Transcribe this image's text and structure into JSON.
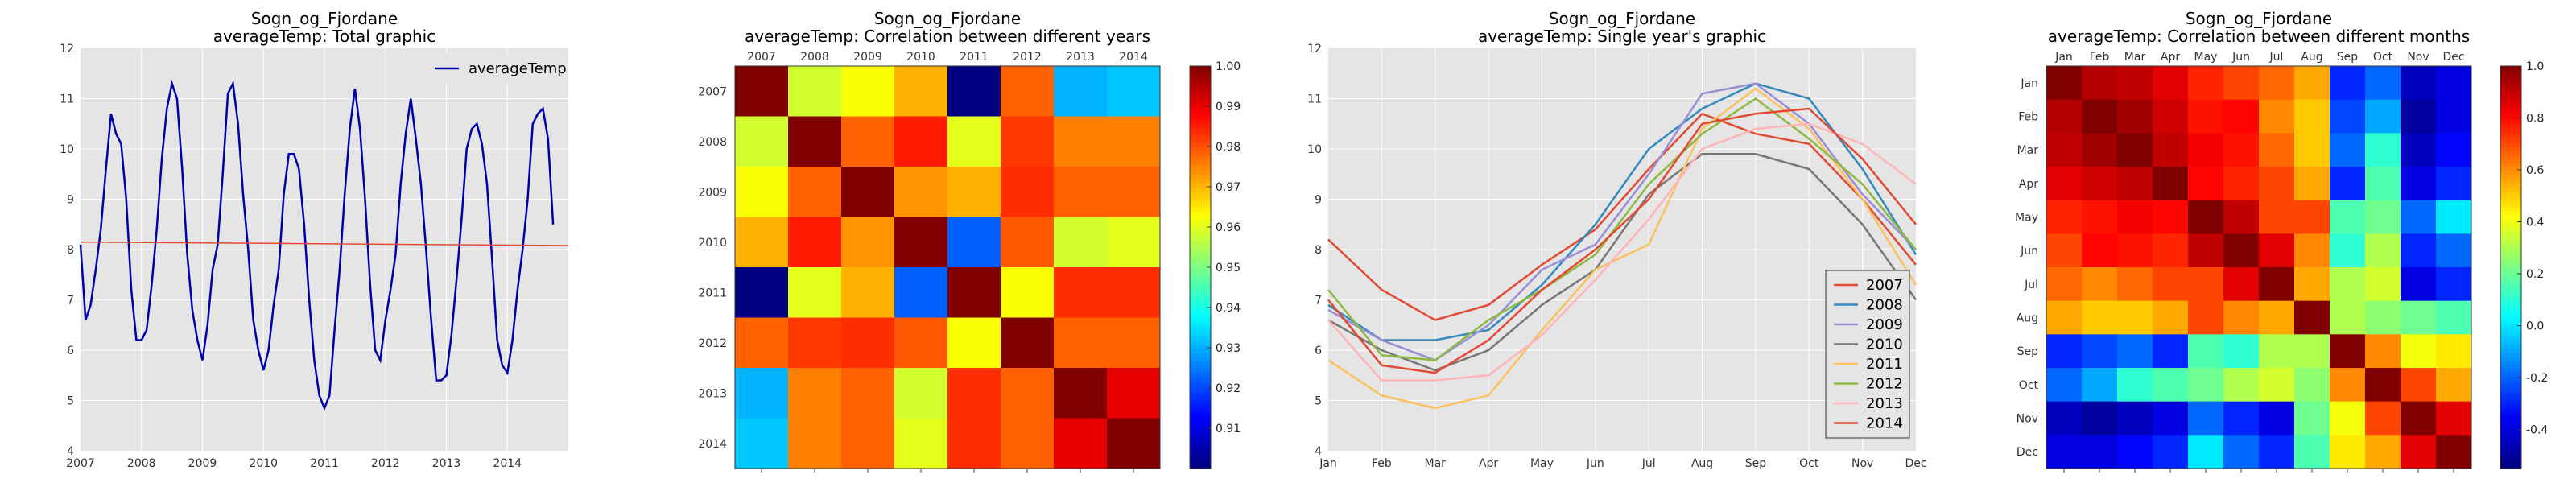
{
  "chart_data": [
    {
      "id": "total",
      "type": "line",
      "title": "Sogn_og_Fjordane",
      "subtitle": "averageTemp: Total graphic",
      "xlim": [
        2007,
        2015
      ],
      "ylim": [
        4,
        12
      ],
      "xticks": [
        "2007",
        "2008",
        "2009",
        "2010",
        "2011",
        "2012",
        "2013",
        "2014"
      ],
      "yticks": [
        "4",
        "5",
        "6",
        "7",
        "8",
        "9",
        "10",
        "11",
        "12"
      ],
      "grid": true,
      "legend": "top-right",
      "series": [
        {
          "name": "averageTemp",
          "color": "#0000aa",
          "y": [
            8.1,
            6.6,
            6.9,
            7.6,
            8.4,
            9.6,
            10.7,
            10.3,
            10.1,
            9.0,
            7.2,
            6.2,
            6.2,
            6.4,
            7.3,
            8.4,
            9.8,
            10.8,
            11.3,
            11.0,
            9.6,
            7.9,
            6.8,
            6.2,
            5.8,
            6.5,
            7.6,
            8.1,
            9.5,
            11.1,
            11.3,
            10.5,
            9.1,
            8.0,
            6.6,
            6.0,
            5.6,
            6.0,
            6.9,
            7.6,
            9.1,
            9.9,
            9.9,
            9.6,
            8.5,
            7.0,
            5.8,
            5.1,
            4.85,
            5.1,
            6.4,
            7.6,
            9.1,
            10.4,
            11.2,
            10.4,
            9.0,
            7.3,
            6.0,
            5.8,
            6.6,
            7.2,
            7.9,
            9.3,
            10.3,
            11.0,
            10.2,
            9.3,
            8.0,
            6.6,
            5.4,
            5.4,
            5.5,
            6.3,
            7.4,
            8.6,
            10.0,
            10.4,
            10.5,
            10.1,
            9.3,
            7.8,
            6.2,
            5.7,
            5.55,
            6.2,
            7.2,
            8.0,
            9.0,
            10.5,
            10.7,
            10.8,
            10.2,
            8.5
          ]
        },
        {
          "name": "",
          "color": "#e24a33",
          "x": [
            2007,
            2015
          ],
          "y": [
            8.15,
            8.08
          ]
        }
      ]
    },
    {
      "id": "years_corr",
      "type": "heatmap",
      "title": "Sogn_og_Fjordane",
      "subtitle": "averageTemp: Correlation between different years",
      "labels": [
        "2007",
        "2008",
        "2009",
        "2010",
        "2011",
        "2012",
        "2013",
        "2014"
      ],
      "vmin": 0.9,
      "vmax": 1.0,
      "colorbar_ticks": [
        "0.91",
        "0.92",
        "0.93",
        "0.94",
        "0.95",
        "0.96",
        "0.97",
        "0.98",
        "0.99",
        "1.00"
      ],
      "matrix": [
        [
          1.0,
          0.958,
          0.962,
          0.97,
          0.9,
          0.978,
          0.93,
          0.932
        ],
        [
          0.958,
          1.0,
          0.978,
          0.985,
          0.96,
          0.982,
          0.975,
          0.975
        ],
        [
          0.962,
          0.978,
          1.0,
          0.973,
          0.97,
          0.983,
          0.978,
          0.978
        ],
        [
          0.97,
          0.985,
          0.973,
          1.0,
          0.922,
          0.979,
          0.958,
          0.96
        ],
        [
          0.9,
          0.96,
          0.97,
          0.922,
          1.0,
          0.962,
          0.983,
          0.983
        ],
        [
          0.978,
          0.982,
          0.983,
          0.979,
          0.962,
          1.0,
          0.978,
          0.978
        ],
        [
          0.93,
          0.975,
          0.978,
          0.958,
          0.983,
          0.978,
          1.0,
          0.99
        ],
        [
          0.932,
          0.975,
          0.978,
          0.96,
          0.983,
          0.978,
          0.99,
          1.0
        ]
      ]
    },
    {
      "id": "single_year",
      "type": "line",
      "title": "Sogn_og_Fjordane",
      "subtitle": "averageTemp: Single year's graphic",
      "categories": [
        "Jan",
        "Feb",
        "Mar",
        "Apr",
        "May",
        "Jun",
        "Jul",
        "Aug",
        "Sep",
        "Oct",
        "Nov",
        "Dec"
      ],
      "ylim": [
        4,
        12
      ],
      "yticks": [
        "4",
        "5",
        "6",
        "7",
        "8",
        "9",
        "10",
        "11",
        "12"
      ],
      "grid": true,
      "legend": "bottom-right",
      "series": [
        {
          "name": "2007",
          "color": "#e24a33",
          "values": [
            8.2,
            7.2,
            6.6,
            6.9,
            7.7,
            8.4,
            9.6,
            10.7,
            10.3,
            10.1,
            9.0,
            7.7
          ]
        },
        {
          "name": "2008",
          "color": "#348abd",
          "values": [
            6.9,
            6.2,
            6.2,
            6.4,
            7.3,
            8.5,
            10.0,
            10.8,
            11.3,
            11.0,
            9.6,
            7.9
          ]
        },
        {
          "name": "2009",
          "color": "#988ed5",
          "values": [
            6.8,
            6.2,
            5.8,
            6.5,
            7.6,
            8.1,
            9.5,
            11.1,
            11.3,
            10.5,
            9.1,
            8.0
          ]
        },
        {
          "name": "2010",
          "color": "#777777",
          "values": [
            6.6,
            6.0,
            5.6,
            6.0,
            6.9,
            7.6,
            9.1,
            9.9,
            9.9,
            9.6,
            8.5,
            7.0
          ]
        },
        {
          "name": "2011",
          "color": "#fbc15e",
          "values": [
            5.8,
            5.1,
            4.85,
            5.1,
            6.4,
            7.6,
            8.1,
            10.4,
            11.2,
            10.4,
            9.0,
            7.3
          ]
        },
        {
          "name": "2012",
          "color": "#8eba42",
          "values": [
            7.2,
            5.9,
            5.8,
            6.6,
            7.2,
            7.9,
            9.3,
            10.3,
            11.0,
            10.2,
            9.3,
            8.0
          ]
        },
        {
          "name": "2013",
          "color": "#ffb5b8",
          "values": [
            6.6,
            5.4,
            5.4,
            5.5,
            6.3,
            7.4,
            8.6,
            10.0,
            10.4,
            10.5,
            10.1,
            9.3
          ]
        },
        {
          "name": "2014",
          "color": "#e24a33",
          "values": [
            7.0,
            5.7,
            5.55,
            6.2,
            7.2,
            8.0,
            9.0,
            10.5,
            10.7,
            10.8,
            9.8,
            8.5
          ]
        }
      ]
    },
    {
      "id": "months_corr",
      "type": "heatmap",
      "title": "Sogn_og_Fjordane",
      "subtitle": "averageTemp: Correlation between different months",
      "labels": [
        "Jan",
        "Feb",
        "Mar",
        "Apr",
        "May",
        "Jun",
        "Jul",
        "Aug",
        "Sep",
        "Oct",
        "Nov",
        "Dec"
      ],
      "vmin": -0.55,
      "vmax": 1.0,
      "colorbar_ticks": [
        "-0.4",
        "-0.2",
        "0.0",
        "0.2",
        "0.4",
        "0.6",
        "0.8",
        "1.0"
      ],
      "colorbar_values": [
        -0.4,
        -0.2,
        0.0,
        0.2,
        0.4,
        0.6,
        0.8,
        1.0
      ],
      "matrix": [
        [
          1.0,
          0.92,
          0.9,
          0.85,
          0.75,
          0.7,
          0.65,
          0.55,
          -0.3,
          -0.2,
          -0.45,
          -0.4
        ],
        [
          0.92,
          1.0,
          0.95,
          0.88,
          0.78,
          0.8,
          0.6,
          0.5,
          -0.25,
          -0.1,
          -0.5,
          -0.4
        ],
        [
          0.9,
          0.95,
          1.0,
          0.9,
          0.82,
          0.78,
          0.65,
          0.5,
          -0.2,
          0.1,
          -0.45,
          -0.35
        ],
        [
          0.85,
          0.88,
          0.9,
          1.0,
          0.8,
          0.75,
          0.7,
          0.55,
          -0.3,
          0.15,
          -0.4,
          -0.3
        ],
        [
          0.75,
          0.78,
          0.82,
          0.8,
          1.0,
          0.9,
          0.7,
          0.7,
          0.15,
          0.2,
          -0.2,
          0.0
        ],
        [
          0.7,
          0.8,
          0.78,
          0.75,
          0.9,
          1.0,
          0.85,
          0.6,
          0.1,
          0.3,
          -0.3,
          -0.2
        ],
        [
          0.65,
          0.6,
          0.65,
          0.7,
          0.7,
          0.85,
          1.0,
          0.55,
          0.3,
          0.35,
          -0.4,
          -0.3
        ],
        [
          0.55,
          0.5,
          0.5,
          0.55,
          0.7,
          0.6,
          0.55,
          1.0,
          0.3,
          0.25,
          0.2,
          0.15
        ],
        [
          -0.3,
          -0.25,
          -0.2,
          -0.3,
          0.15,
          0.1,
          0.3,
          0.3,
          1.0,
          0.6,
          0.4,
          0.45
        ],
        [
          -0.2,
          -0.1,
          0.1,
          0.15,
          0.2,
          0.3,
          0.35,
          0.25,
          0.6,
          1.0,
          0.7,
          0.55
        ],
        [
          -0.45,
          -0.5,
          -0.45,
          -0.4,
          -0.2,
          -0.3,
          -0.4,
          0.2,
          0.4,
          0.7,
          1.0,
          0.85
        ],
        [
          -0.4,
          -0.4,
          -0.35,
          -0.3,
          0.0,
          -0.2,
          -0.3,
          0.15,
          0.45,
          0.55,
          0.85,
          1.0
        ]
      ]
    }
  ]
}
